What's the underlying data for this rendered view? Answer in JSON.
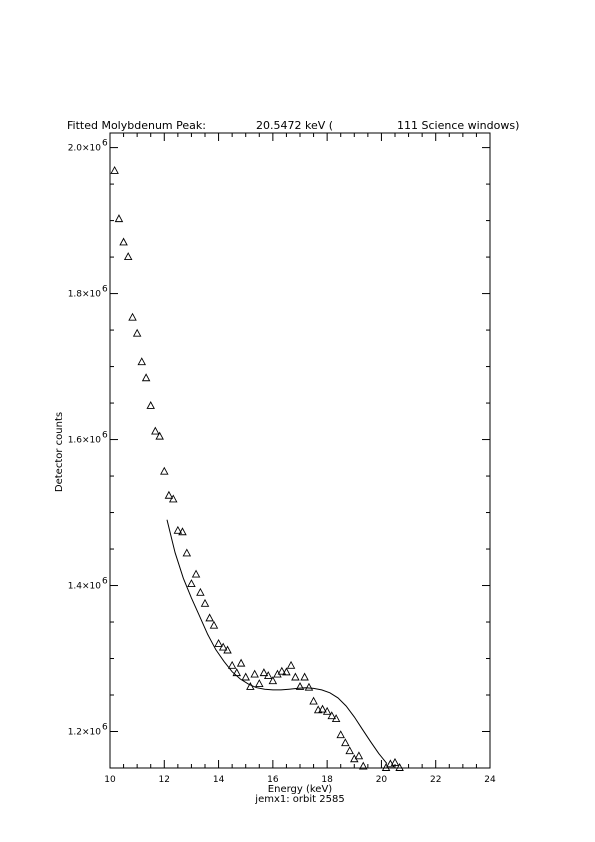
{
  "chart_data": {
    "type": "scatter",
    "title": {
      "label": "Fitted Molybdenum Peak:",
      "value": "20.5472 keV (",
      "windows": "111 Science windows)"
    },
    "xlabel": "Energy (keV)",
    "ylabel": "Detector counts",
    "subtitle": "jemx1: orbit 2585",
    "xlim": [
      10,
      24
    ],
    "ylim": [
      1.15,
      2.02
    ],
    "y_exponent": "6",
    "x_ticks": [
      10,
      12,
      14,
      16,
      18,
      20,
      22,
      24
    ],
    "y_ticks": [
      1.2,
      1.4,
      1.6,
      1.8,
      2.0
    ],
    "y_tick_labels": [
      "1.2×10",
      "1.4×10",
      "1.6×10",
      "1.8×10",
      "2.0×10"
    ],
    "series": [
      {
        "type": "scatter",
        "marker": "triangle",
        "points": [
          [
            10.17,
            1.968
          ],
          [
            10.33,
            1.902
          ],
          [
            10.5,
            1.87
          ],
          [
            10.67,
            1.85
          ],
          [
            10.83,
            1.767
          ],
          [
            11.0,
            1.745
          ],
          [
            11.17,
            1.706
          ],
          [
            11.33,
            1.684
          ],
          [
            11.5,
            1.646
          ],
          [
            11.67,
            1.611
          ],
          [
            11.83,
            1.604
          ],
          [
            12.0,
            1.556
          ],
          [
            12.17,
            1.523
          ],
          [
            12.33,
            1.518
          ],
          [
            12.5,
            1.475
          ],
          [
            12.67,
            1.473
          ],
          [
            12.83,
            1.444
          ],
          [
            13.0,
            1.402
          ],
          [
            13.17,
            1.415
          ],
          [
            13.33,
            1.39
          ],
          [
            13.5,
            1.375
          ],
          [
            13.67,
            1.355
          ],
          [
            13.83,
            1.345
          ],
          [
            14.0,
            1.32
          ],
          [
            14.17,
            1.315
          ],
          [
            14.33,
            1.311
          ],
          [
            14.5,
            1.29
          ],
          [
            14.67,
            1.28
          ],
          [
            14.83,
            1.293
          ],
          [
            15.0,
            1.274
          ],
          [
            15.17,
            1.261
          ],
          [
            15.33,
            1.278
          ],
          [
            15.5,
            1.265
          ],
          [
            15.67,
            1.28
          ],
          [
            15.83,
            1.276
          ],
          [
            16.0,
            1.269
          ],
          [
            16.17,
            1.278
          ],
          [
            16.33,
            1.282
          ],
          [
            16.5,
            1.281
          ],
          [
            16.67,
            1.29
          ],
          [
            16.83,
            1.274
          ],
          [
            17.0,
            1.261
          ],
          [
            17.17,
            1.274
          ],
          [
            17.33,
            1.26
          ],
          [
            17.5,
            1.241
          ],
          [
            17.67,
            1.229
          ],
          [
            17.83,
            1.23
          ],
          [
            18.0,
            1.227
          ],
          [
            18.17,
            1.221
          ],
          [
            18.33,
            1.217
          ],
          [
            18.5,
            1.195
          ],
          [
            18.67,
            1.184
          ],
          [
            18.83,
            1.173
          ],
          [
            19.0,
            1.162
          ],
          [
            19.17,
            1.166
          ],
          [
            19.33,
            1.152
          ],
          [
            19.5,
            1.149
          ],
          [
            19.67,
            1.148
          ],
          [
            19.83,
            1.145
          ],
          [
            20.0,
            1.147
          ],
          [
            20.17,
            1.15
          ],
          [
            20.33,
            1.155
          ],
          [
            20.5,
            1.157
          ],
          [
            20.67,
            1.15
          ],
          [
            20.83,
            1.148
          ]
        ]
      },
      {
        "type": "line",
        "points": [
          [
            12.1,
            1.49
          ],
          [
            12.4,
            1.445
          ],
          [
            12.7,
            1.41
          ],
          [
            13.0,
            1.383
          ],
          [
            13.3,
            1.358
          ],
          [
            13.6,
            1.333
          ],
          [
            13.9,
            1.312
          ],
          [
            14.2,
            1.296
          ],
          [
            14.5,
            1.282
          ],
          [
            14.8,
            1.272
          ],
          [
            15.1,
            1.265
          ],
          [
            15.4,
            1.26
          ],
          [
            15.7,
            1.258
          ],
          [
            16.0,
            1.257
          ],
          [
            16.3,
            1.257
          ],
          [
            16.6,
            1.258
          ],
          [
            16.9,
            1.259
          ],
          [
            17.2,
            1.26
          ],
          [
            17.5,
            1.259
          ],
          [
            17.8,
            1.257
          ],
          [
            18.1,
            1.253
          ],
          [
            18.4,
            1.246
          ],
          [
            18.7,
            1.235
          ],
          [
            19.0,
            1.22
          ],
          [
            19.3,
            1.203
          ],
          [
            19.6,
            1.186
          ],
          [
            19.9,
            1.17
          ],
          [
            20.2,
            1.156
          ]
        ]
      }
    ]
  }
}
